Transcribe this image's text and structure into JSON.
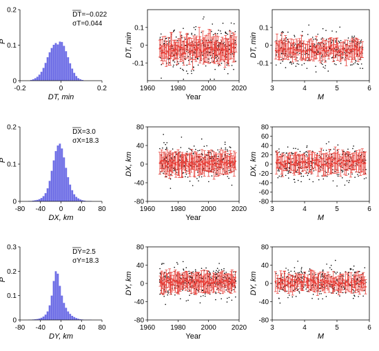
{
  "chart_data": [
    {
      "id": "hist-dt",
      "type": "histogram",
      "xlabel": "DT, min",
      "ylabel": "P",
      "xlim": [
        -0.2,
        0.2
      ],
      "ylim": [
        0,
        0.2
      ],
      "xticks": [
        "-0.2",
        "0",
        "0.2"
      ],
      "yticks": [
        "0",
        "0.1",
        "0.2"
      ],
      "stats": [
        "DT=−0.022",
        "σT=0.044"
      ],
      "color": "#6f6fe6",
      "bins": {
        "start": -0.15,
        "width": 0.01,
        "values": [
          0.002,
          0.004,
          0.007,
          0.011,
          0.017,
          0.025,
          0.036,
          0.05,
          0.066,
          0.08,
          0.092,
          0.101,
          0.106,
          0.102,
          0.11,
          0.109,
          0.098,
          0.083,
          0.066,
          0.049,
          0.034,
          0.022,
          0.013,
          0.007,
          0.004,
          0.002
        ]
      }
    },
    {
      "id": "dt-year",
      "type": "scatter-errorbar",
      "xlabel": "Year",
      "ylabel": "DT, min",
      "xlim": [
        1960,
        2020
      ],
      "ylim": [
        -0.2,
        0.2
      ],
      "xticks": [
        "1960",
        "1980",
        "2000",
        "2020"
      ],
      "yticks": [
        "-0.1",
        "0",
        "0.1"
      ],
      "x_range": [
        1968,
        2018
      ],
      "center": -0.02,
      "spread": 0.06,
      "err": 0.06,
      "color": "#e8413a"
    },
    {
      "id": "dt-m",
      "type": "scatter-errorbar",
      "xlabel": "M",
      "ylabel": "DT, min",
      "xlim": [
        3,
        6
      ],
      "ylim": [
        -0.2,
        0.2
      ],
      "xticks": [
        "3",
        "4",
        "5",
        "6"
      ],
      "yticks": [
        "-0.1",
        "0",
        "0.1"
      ],
      "x_range": [
        3.1,
        5.8
      ],
      "center": -0.025,
      "spread": 0.05,
      "err": 0.045,
      "color": "#e8413a"
    },
    {
      "id": "hist-dx",
      "type": "histogram",
      "xlabel": "DX, km",
      "ylabel": "P",
      "xlim": [
        -80,
        80
      ],
      "ylim": [
        0,
        0.2
      ],
      "xticks": [
        "-80",
        "-40",
        "0",
        "40",
        "80"
      ],
      "yticks": [
        "0",
        "0.1",
        "0.2"
      ],
      "stats": [
        "DX=3.0",
        "σX=18.3"
      ],
      "color": "#6f6fe6",
      "bins": {
        "start": -64,
        "width": 4,
        "values": [
          0.001,
          0.001,
          0.002,
          0.003,
          0.004,
          0.006,
          0.009,
          0.014,
          0.022,
          0.035,
          0.055,
          0.082,
          0.11,
          0.135,
          0.15,
          0.155,
          0.142,
          0.118,
          0.09,
          0.065,
          0.045,
          0.03,
          0.019,
          0.012,
          0.008,
          0.005,
          0.003,
          0.002,
          0.001,
          0.001,
          0.001
        ]
      }
    },
    {
      "id": "dx-year",
      "type": "scatter-errorbar",
      "xlabel": "Year",
      "ylabel": "DX, km",
      "xlim": [
        1960,
        2020
      ],
      "ylim": [
        -80,
        80
      ],
      "xticks": [
        "1960",
        "1980",
        "2000",
        "2020"
      ],
      "yticks": [
        "-80",
        "-40",
        "0",
        "40",
        "80"
      ],
      "x_range": [
        1968,
        2018
      ],
      "center": 2,
      "spread": 18,
      "err": 20,
      "color": "#e8413a"
    },
    {
      "id": "dx-m",
      "type": "scatter-errorbar",
      "xlabel": "M",
      "ylabel": "DX, km",
      "xlim": [
        3,
        6
      ],
      "ylim": [
        -80,
        80
      ],
      "xticks": [
        "3",
        "4",
        "5",
        "6"
      ],
      "yticks": [
        "-80",
        "-60",
        "-40",
        "-20",
        "0",
        "20",
        "40",
        "60",
        "80"
      ],
      "x_range": [
        3.1,
        5.9
      ],
      "center": 3,
      "spread": 18,
      "err": 18,
      "color": "#e8413a"
    },
    {
      "id": "hist-dy",
      "type": "histogram",
      "xlabel": "DY, km",
      "ylabel": "P",
      "xlim": [
        -80,
        80
      ],
      "ylim": [
        0,
        0.3
      ],
      "xticks": [
        "-80",
        "-40",
        "0",
        "40",
        "80"
      ],
      "yticks": [
        "0",
        "0.1",
        "0.2",
        "0.3"
      ],
      "stats": [
        "DY=2.5",
        "σY=18.3"
      ],
      "color": "#6f6fe6",
      "bins": {
        "start": -64,
        "width": 4,
        "values": [
          0.001,
          0.001,
          0.002,
          0.003,
          0.004,
          0.006,
          0.009,
          0.014,
          0.022,
          0.035,
          0.06,
          0.1,
          0.16,
          0.2,
          0.19,
          0.14,
          0.1,
          0.07,
          0.05,
          0.035,
          0.025,
          0.017,
          0.012,
          0.008,
          0.005,
          0.003,
          0.002,
          0.001,
          0.001,
          0.001,
          0.001
        ]
      }
    },
    {
      "id": "dy-year",
      "type": "scatter-errorbar",
      "xlabel": "Year",
      "ylabel": "DY, km",
      "xlim": [
        1960,
        2020
      ],
      "ylim": [
        -80,
        80
      ],
      "xticks": [
        "1960",
        "1980",
        "2000",
        "2020"
      ],
      "yticks": [
        "-80",
        "-40",
        "0",
        "40",
        "80"
      ],
      "x_range": [
        1968,
        2018
      ],
      "center": 3,
      "spread": 17,
      "err": 18,
      "color": "#e8413a"
    },
    {
      "id": "dy-m",
      "type": "scatter-errorbar",
      "xlabel": "M",
      "ylabel": "DY, km",
      "xlim": [
        3,
        6
      ],
      "ylim": [
        -80,
        80
      ],
      "xticks": [
        "3",
        "4",
        "5",
        "6"
      ],
      "yticks": [
        "-80",
        "-40",
        "0",
        "40",
        "80"
      ],
      "x_range": [
        3.1,
        5.9
      ],
      "center": 2,
      "spread": 17,
      "err": 16,
      "color": "#e8413a"
    }
  ]
}
